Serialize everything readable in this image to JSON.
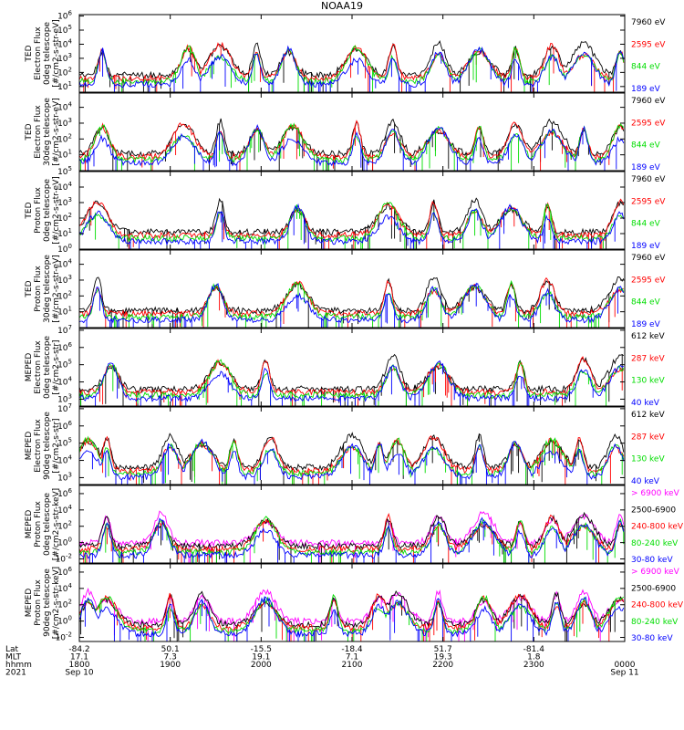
{
  "figure": {
    "title": "NOAA19"
  },
  "chart_data": [
    {
      "type": "line",
      "ylabel": [
        "TED",
        "Electron Flux",
        "0deg telescope",
        "[#/cm2-s-str-eV]"
      ],
      "ytick_labels": [
        "10^1",
        "10^2",
        "10^3",
        "10^4",
        "10^5",
        "10^6"
      ],
      "ylim_log10": [
        0.6,
        6.1
      ],
      "series": [
        {
          "name": "7960 eV",
          "color": "#000000"
        },
        {
          "name": "2595 eV",
          "color": "#ff0000"
        },
        {
          "name": "844 eV",
          "color": "#00dd00"
        },
        {
          "name": "189 eV",
          "color": "#0000ff"
        }
      ],
      "peak_times": [
        18.25,
        19.2,
        19.55,
        19.95,
        20.3,
        21.05,
        21.45,
        21.95,
        22.4,
        22.8,
        23.2,
        23.55,
        23.95
      ]
    },
    {
      "type": "line",
      "ylabel": [
        "TED",
        "Electron Flux",
        "30deg telescope",
        "[#/cm2-s-str-eV]"
      ],
      "ytick_labels": [
        "10^1",
        "10^2",
        "10^3",
        "10^4"
      ],
      "ylim_log10": [
        0.0,
        4.9
      ],
      "series": [
        {
          "name": "7960 eV",
          "color": "#000000"
        },
        {
          "name": "2595 eV",
          "color": "#ff0000"
        },
        {
          "name": "844 eV",
          "color": "#00dd00"
        },
        {
          "name": "189 eV",
          "color": "#0000ff"
        }
      ],
      "peak_times": [
        18.25,
        19.15,
        19.55,
        19.95,
        20.35,
        21.05,
        21.45,
        21.95,
        22.4,
        22.8,
        23.2,
        23.55,
        23.95
      ]
    },
    {
      "type": "line",
      "ylabel": [
        "TED",
        "Proton Flux",
        "0deg telescope",
        "[#/cm2-s-str-eV]"
      ],
      "ytick_labels": [
        "10^0",
        "10^1",
        "10^2",
        "10^3",
        "10^4",
        "10^5"
      ],
      "ylim_log10": [
        0.0,
        5.0
      ],
      "series": [
        {
          "name": "7960 eV",
          "color": "#000000"
        },
        {
          "name": "2595 eV",
          "color": "#ff0000"
        },
        {
          "name": "844 eV",
          "color": "#00dd00"
        },
        {
          "name": "189 eV",
          "color": "#0000ff"
        }
      ],
      "peak_times": [
        18.2,
        19.55,
        20.4,
        21.4,
        21.9,
        22.35,
        22.75,
        23.15,
        23.95
      ]
    },
    {
      "type": "line",
      "ylabel": [
        "TED",
        "Proton Flux",
        "30deg telescope",
        "[#/cm2-s-str-eV]"
      ],
      "ytick_labels": [
        "10^1",
        "10^2",
        "10^3",
        "10^4"
      ],
      "ylim_log10": [
        0.0,
        4.9
      ],
      "series": [
        {
          "name": "7960 eV",
          "color": "#000000"
        },
        {
          "name": "2595 eV",
          "color": "#ff0000"
        },
        {
          "name": "844 eV",
          "color": "#00dd00"
        },
        {
          "name": "189 eV",
          "color": "#0000ff"
        }
      ],
      "peak_times": [
        18.2,
        19.5,
        20.4,
        21.4,
        21.9,
        22.35,
        22.75,
        23.15,
        23.95
      ]
    },
    {
      "type": "line",
      "ylabel": [
        "MEPED",
        "Electron Flux",
        "0deg telescope",
        "[#/cm2-s-str]"
      ],
      "ytick_labels": [
        "10^3",
        "10^4",
        "10^5",
        "10^6",
        "10^7"
      ],
      "ylim_log10": [
        2.6,
        7.1
      ],
      "series": [
        {
          "name": "612 keV",
          "color": "#000000"
        },
        {
          "name": "287 keV",
          "color": "#ff0000"
        },
        {
          "name": "130 keV",
          "color": "#00dd00"
        },
        {
          "name": "40 keV",
          "color": "#0000ff"
        }
      ],
      "peak_times": [
        18.35,
        19.55,
        20.05,
        21.45,
        21.95,
        22.85,
        23.55,
        23.95
      ]
    },
    {
      "type": "line",
      "ylabel": [
        "MEPED",
        "Electron Flux",
        "90deg telescope",
        "[#/cm2-s-str]"
      ],
      "ytick_labels": [
        "10^3",
        "10^4",
        "10^5",
        "10^6",
        "10^7"
      ],
      "ylim_log10": [
        2.6,
        7.1
      ],
      "series": [
        {
          "name": "612 keV",
          "color": "#000000"
        },
        {
          "name": "287 keV",
          "color": "#ff0000"
        },
        {
          "name": "130 keV",
          "color": "#00dd00"
        },
        {
          "name": "40 keV",
          "color": "#0000ff"
        }
      ],
      "peak_times": [
        18.1,
        18.3,
        19.0,
        19.35,
        19.7,
        20.1,
        21.0,
        21.3,
        21.5,
        21.9,
        22.4,
        22.8,
        23.2,
        23.5,
        23.9
      ]
    },
    {
      "type": "line",
      "ylabel": [
        "MEPED",
        "Proton Flux",
        "0deg telescope",
        "[#/cm2-s-str-keV]"
      ],
      "ytick_labels": [
        "10^-2",
        "10^0",
        "10^2",
        "10^4",
        "10^6"
      ],
      "ylim_log10": [
        -2.5,
        7.0
      ],
      "series": [
        {
          "name": "> 6900 keV",
          "color": "#ff00ff"
        },
        {
          "name": "2500-6900",
          "color": "#000000"
        },
        {
          "name": "240-800 keV",
          "color": "#ff0000"
        },
        {
          "name": "80-240 keV",
          "color": "#00dd00"
        },
        {
          "name": "30-80 keV",
          "color": "#0000ff"
        }
      ],
      "peak_times": [
        18.3,
        18.9,
        20.05,
        21.4,
        21.95,
        22.45,
        22.85,
        23.2,
        23.55,
        23.95
      ]
    },
    {
      "type": "line",
      "ylabel": [
        "MEPED",
        "Proton Flux",
        "90deg telescope",
        "[#/cm2-s-str-keV]"
      ],
      "ytick_labels": [
        "10^-2",
        "10^0",
        "10^2",
        "10^4",
        "10^6"
      ],
      "ylim_log10": [
        -2.5,
        7.0
      ],
      "series": [
        {
          "name": "> 6900 keV",
          "color": "#ff00ff"
        },
        {
          "name": "2500-6900",
          "color": "#000000"
        },
        {
          "name": "240-800 keV",
          "color": "#ff0000"
        },
        {
          "name": "80-240 keV",
          "color": "#00dd00"
        },
        {
          "name": "30-80 keV",
          "color": "#0000ff"
        }
      ],
      "peak_times": [
        18.1,
        18.3,
        19.0,
        19.35,
        20.05,
        20.8,
        21.3,
        21.5,
        21.95,
        22.45,
        22.85,
        23.25,
        23.55,
        23.95
      ]
    }
  ],
  "x_axis": {
    "range_hours": [
      18.0,
      24.0
    ],
    "row_labels": [
      "Lat",
      "MLT",
      "hhmm",
      "2021"
    ],
    "ticks": [
      {
        "t": 18,
        "lat": "-84.2",
        "mlt": "17.1",
        "hhmm": "1800",
        "date": "Sep 10"
      },
      {
        "t": 19,
        "lat": "50.1",
        "mlt": "7.3",
        "hhmm": "1900",
        "date": ""
      },
      {
        "t": 20,
        "lat": "-15.5",
        "mlt": "19.1",
        "hhmm": "2000",
        "date": ""
      },
      {
        "t": 21,
        "lat": "-18.4",
        "mlt": "7.1",
        "hhmm": "2100",
        "date": ""
      },
      {
        "t": 22,
        "lat": "51.7",
        "mlt": "19.3",
        "hhmm": "2200",
        "date": ""
      },
      {
        "t": 23,
        "lat": "-81.4",
        "mlt": "1.8",
        "hhmm": "2300",
        "date": ""
      },
      {
        "t": 24,
        "lat": "",
        "mlt": "",
        "hhmm": "0000",
        "date": "Sep 11"
      }
    ]
  }
}
